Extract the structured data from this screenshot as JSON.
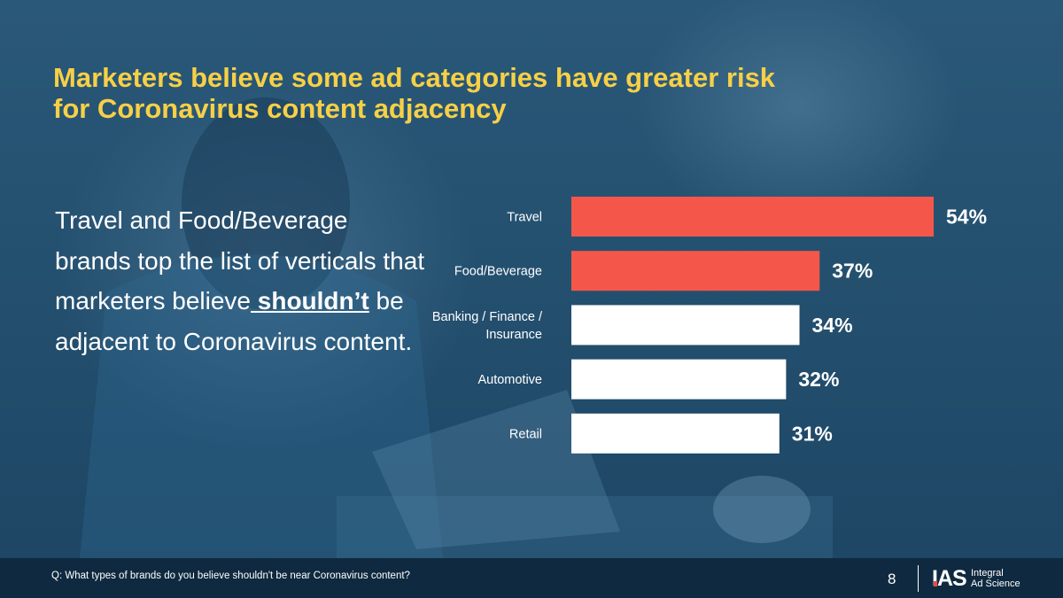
{
  "title": {
    "line1": "Marketers believe some ad categories have greater risk",
    "line2": "for Coronavirus content adjacency"
  },
  "body": {
    "before": "Travel and Food/Beverage brands top the list of verticals that marketers believe",
    "emphasis": " shouldn’t",
    "after": " be adjacent to Coronavirus content."
  },
  "chart_data": {
    "type": "bar",
    "orientation": "horizontal",
    "title": "",
    "xlabel": "",
    "ylabel": "",
    "categories": [
      "Travel",
      "Food/Beverage",
      "Banking / Finance / Insurance",
      "Automotive",
      "Retail"
    ],
    "category_lines": [
      [
        "Travel"
      ],
      [
        "Food/Beverage"
      ],
      [
        "Banking / Finance /",
        "Insurance"
      ],
      [
        "Automotive"
      ],
      [
        "Retail"
      ]
    ],
    "values": [
      54,
      37,
      34,
      32,
      31
    ],
    "labels": [
      "54%",
      "37%",
      "34%",
      "32%",
      "31%"
    ],
    "highlight": [
      true,
      true,
      false,
      false,
      false
    ],
    "xlim": [
      0,
      60
    ],
    "grid": false,
    "unit": "%"
  },
  "colors": {
    "title": "#f7d046",
    "highlight_bar": "#f4574a",
    "normal_bar": "#ffffff",
    "footer_bg": "#0f2a40",
    "logo_accent": "#e84b4b"
  },
  "footer": {
    "question": "Q: What types of brands do you believe shouldn't be near Coronavirus content?",
    "page_number": "8",
    "logo_mark": "IAS",
    "logo_word1": "Integral",
    "logo_word2": "Ad Science"
  }
}
